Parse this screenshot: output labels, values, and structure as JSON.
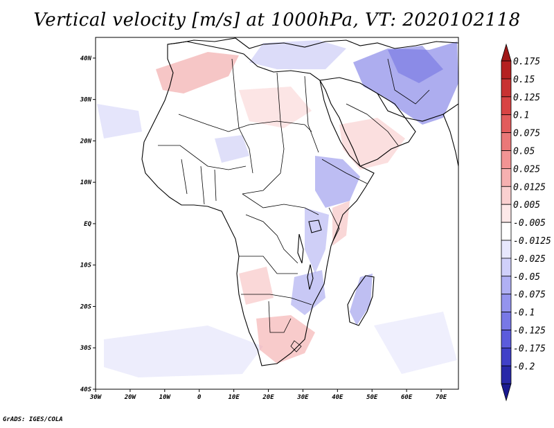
{
  "title": "Vertical velocity [m/s] at 1000hPa, VT: 2020102118",
  "credit": "GrADS: IGES/COLA",
  "map": {
    "lon_range": [
      -30,
      75
    ],
    "lat_range": [
      -40,
      45
    ],
    "x_ticks": [
      {
        "lon": -30,
        "label": "30W"
      },
      {
        "lon": -20,
        "label": "20W"
      },
      {
        "lon": -10,
        "label": "10W"
      },
      {
        "lon": 0,
        "label": "0"
      },
      {
        "lon": 10,
        "label": "10E"
      },
      {
        "lon": 20,
        "label": "20E"
      },
      {
        "lon": 30,
        "label": "30E"
      },
      {
        "lon": 40,
        "label": "40E"
      },
      {
        "lon": 50,
        "label": "50E"
      },
      {
        "lon": 60,
        "label": "60E"
      },
      {
        "lon": 70,
        "label": "70E"
      }
    ],
    "y_ticks": [
      {
        "lat": 40,
        "label": "40N"
      },
      {
        "lat": 30,
        "label": "30N"
      },
      {
        "lat": 20,
        "label": "20N"
      },
      {
        "lat": 10,
        "label": "10N"
      },
      {
        "lat": 0,
        "label": "EQ"
      },
      {
        "lat": -10,
        "label": "10S"
      },
      {
        "lat": -20,
        "label": "20S"
      },
      {
        "lat": -30,
        "label": "30S"
      },
      {
        "lat": -40,
        "label": "40S"
      }
    ]
  },
  "colorbar": {
    "levels": [
      {
        "label": "0.175",
        "color": "#b42020"
      },
      {
        "label": "0.15",
        "color": "#c83232"
      },
      {
        "label": "0.125",
        "color": "#d84444"
      },
      {
        "label": "0.1",
        "color": "#e25c5c"
      },
      {
        "label": "0.075",
        "color": "#ea7878"
      },
      {
        "label": "0.05",
        "color": "#f29494"
      },
      {
        "label": "0.025",
        "color": "#f6b0b0"
      },
      {
        "label": "0.0125",
        "color": "#fad0d0"
      },
      {
        "label": "0.005",
        "color": "#fde8e8"
      },
      {
        "label": "-0.005",
        "color": "#ffffff"
      },
      {
        "label": "-0.0125",
        "color": "#e8e8fd"
      },
      {
        "label": "-0.025",
        "color": "#d0d0fa"
      },
      {
        "label": "-0.05",
        "color": "#b0b0f4"
      },
      {
        "label": "-0.075",
        "color": "#9494ee"
      },
      {
        "label": "-0.1",
        "color": "#7878e6"
      },
      {
        "label": "-0.125",
        "color": "#5c5cdc"
      },
      {
        "label": "-0.175",
        "color": "#4040c8"
      },
      {
        "label": "-0.2",
        "color": "#2828a8"
      }
    ],
    "top_color": "#a01818",
    "bottom_color": "#1a1a90"
  }
}
